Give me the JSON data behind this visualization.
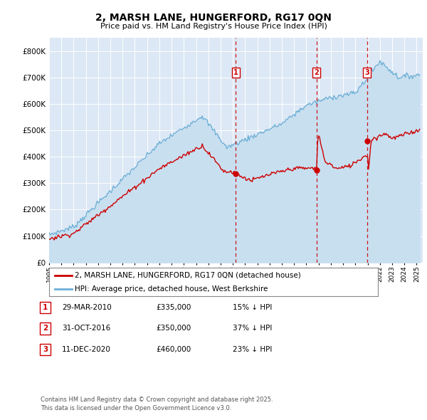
{
  "title": "2, MARSH LANE, HUNGERFORD, RG17 0QN",
  "subtitle": "Price paid vs. HM Land Registry's House Price Index (HPI)",
  "ylim": [
    0,
    850000
  ],
  "yticks": [
    0,
    100000,
    200000,
    300000,
    400000,
    500000,
    600000,
    700000,
    800000
  ],
  "xlim_start": 1995.0,
  "xlim_end": 2025.5,
  "background_color": "#dce8f5",
  "hpi_color": "#6baed6",
  "hpi_fill_color": "#c8dff0",
  "price_color": "#cc0000",
  "dashed_line_color": "#cc0000",
  "legend_label_price": "2, MARSH LANE, HUNGERFORD, RG17 0QN (detached house)",
  "legend_label_hpi": "HPI: Average price, detached house, West Berkshire",
  "transactions": [
    {
      "label": "1",
      "date": 2010.24,
      "price": 335000
    },
    {
      "label": "2",
      "date": 2016.83,
      "price": 350000
    },
    {
      "label": "3",
      "date": 2020.95,
      "price": 460000
    }
  ],
  "footer_lines": [
    "Contains HM Land Registry data © Crown copyright and database right 2025.",
    "This data is licensed under the Open Government Licence v3.0."
  ],
  "table_rows": [
    {
      "label": "1",
      "date": "29-MAR-2010",
      "price": "£335,000",
      "pct": "15% ↓ HPI"
    },
    {
      "label": "2",
      "date": "31-OCT-2016",
      "price": "£350,000",
      "pct": "37% ↓ HPI"
    },
    {
      "label": "3",
      "date": "11-DEC-2020",
      "price": "£460,000",
      "pct": "23% ↓ HPI"
    }
  ]
}
